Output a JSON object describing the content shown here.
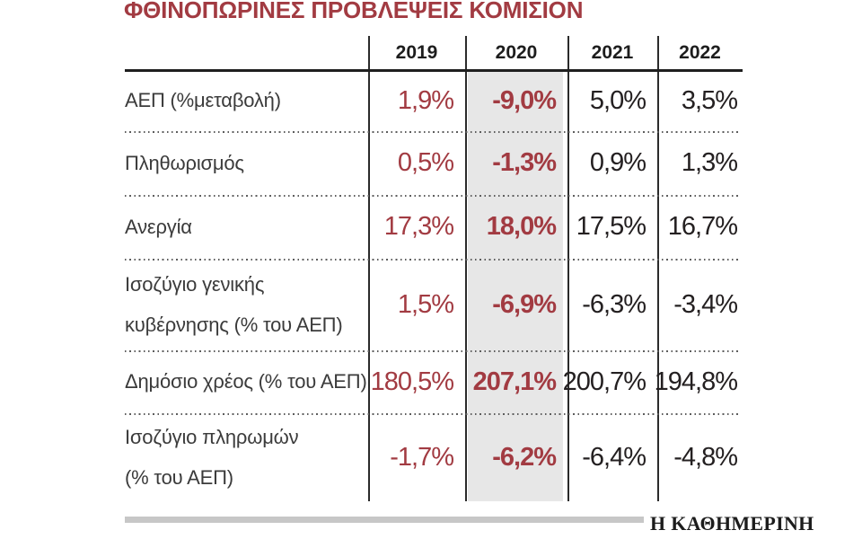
{
  "title": "ΦΘΙΝΟΠΩΡΙΝΕΣ ΠΡΟΒΛΕΨΕΙΣ ΚΟΜΙΣΙΟΝ",
  "footer": {
    "source_logo": "Η ΚΑΘΗΜΕΡΙΝΗ"
  },
  "colors": {
    "accent_red": "#A23B42",
    "value_black": "#242021",
    "label_gray": "#3B3B3B",
    "highlight_gray": "#E7E7E7",
    "footer_bar_gray": "#C7C7C7"
  },
  "chart_data": {
    "type": "table",
    "title": "ΦΘΙΝΟΠΩΡΙΝΕΣ ΠΡΟΒΛΕΨΕΙΣ ΚΟΜΙΣΙΟΝ",
    "columns": [
      "2019",
      "2020",
      "2021",
      "2022"
    ],
    "highlighted_column": "2020",
    "notes": "2019 column values red regular; 2020 column values red bold on gray highlight; 2021 and 2022 black",
    "rows": [
      {
        "label": "ΑΕΠ (%μεταβολή)",
        "values": [
          "1,9%",
          "-9,0%",
          "5,0%",
          "3,5%"
        ]
      },
      {
        "label": "Πληθωρισμός",
        "values": [
          "0,5%",
          "-1,3%",
          "0,9%",
          "1,3%"
        ]
      },
      {
        "label": "Ανεργία",
        "values": [
          "17,3%",
          "18,0%",
          "17,5%",
          "16,7%"
        ]
      },
      {
        "label": "Ισοζύγιο γενικής κυβέρνησης (% του ΑΕΠ)",
        "label_lines": [
          "Ισοζύγιο γενικής",
          "κυβέρνησης (% του ΑΕΠ)"
        ],
        "values": [
          "1,5%",
          "-6,9%",
          "-6,3%",
          "-3,4%"
        ]
      },
      {
        "label": "Δημόσιο χρέος (% του ΑΕΠ)",
        "values": [
          "180,5%",
          "207,1%",
          "200,7%",
          "194,8%"
        ]
      },
      {
        "label": "Ισοζύγιο πληρωμών (% του ΑΕΠ)",
        "label_lines": [
          "Ισοζύγιο πληρωμών",
          "(% του ΑΕΠ)"
        ],
        "values": [
          "-1,7%",
          "-6,2%",
          "-6,4%",
          "-4,8%"
        ]
      }
    ]
  }
}
